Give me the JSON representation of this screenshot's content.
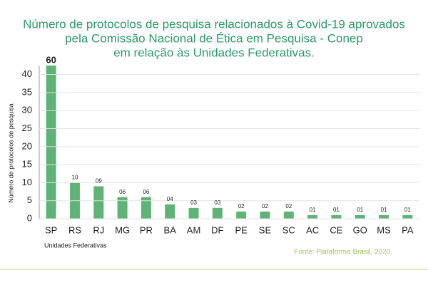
{
  "chart_data": {
    "type": "bar",
    "title_lines": [
      "Número de protocolos de pesquisa relacionados à Covid-19 aprovados",
      "pela Comissão Nacional de Ética em Pesquisa - Conep",
      "em relação às Unidades Federativas."
    ],
    "y_label": "Número de protocolos de pesquisa",
    "x_label": "Unidades Federativas",
    "source": "Fonte: Plataforma Brasil, 2020.",
    "categories": [
      "SP",
      "RS",
      "RJ",
      "MG",
      "PR",
      "BA",
      "AM",
      "DF",
      "PE",
      "SE",
      "SC",
      "AC",
      "CE",
      "GO",
      "MS",
      "PA"
    ],
    "values": [
      60,
      10,
      9,
      6,
      6,
      4,
      3,
      3,
      2,
      2,
      2,
      1,
      1,
      1,
      1,
      1
    ],
    "value_labels": [
      "60",
      "10",
      "09",
      "06",
      "06",
      "04",
      "03",
      "03",
      "02",
      "02",
      "02",
      "01",
      "01",
      "01",
      "01",
      "01"
    ],
    "color": "#5fb376",
    "ylim": [
      0,
      42.5
    ],
    "yticks": [
      0,
      5,
      10,
      15,
      20,
      25,
      30,
      35,
      40
    ],
    "grid": true
  }
}
